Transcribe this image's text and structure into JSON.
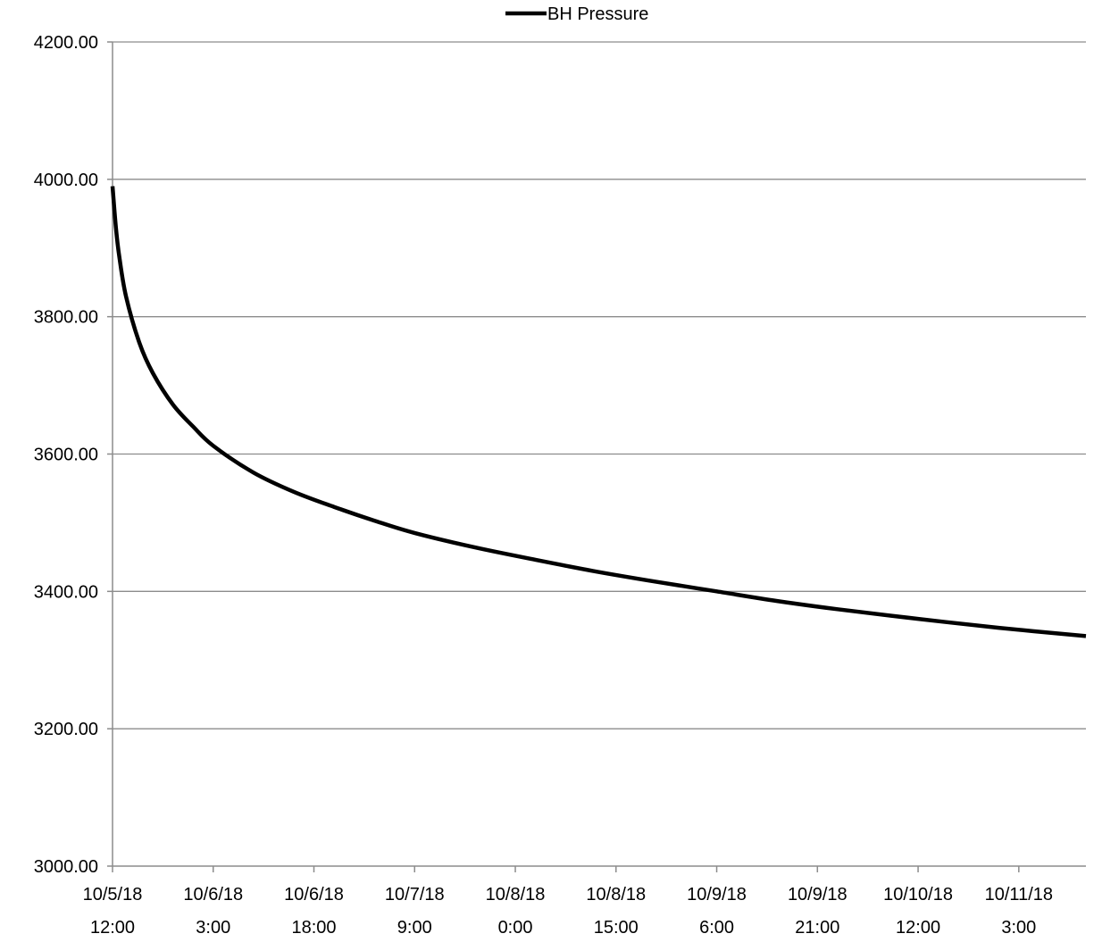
{
  "chart_data": {
    "type": "line",
    "title": "",
    "xlabel": "",
    "ylabel": "",
    "legend_position": "top-center",
    "grid": {
      "horizontal": true,
      "vertical": false
    },
    "ylim": [
      3000,
      4200
    ],
    "yticks": [
      "3000.00",
      "3200.00",
      "3400.00",
      "3600.00",
      "3800.00",
      "4000.00",
      "4200.00"
    ],
    "xlim": [
      "2018-10-05 12:00",
      "2018-10-11 13:00"
    ],
    "xticks": [
      {
        "value": "2018-10-05 12:00",
        "line1": "10/5/18",
        "line2": "12:00"
      },
      {
        "value": "2018-10-06 03:00",
        "line1": "10/6/18",
        "line2": "3:00"
      },
      {
        "value": "2018-10-06 18:00",
        "line1": "10/6/18",
        "line2": "18:00"
      },
      {
        "value": "2018-10-07 09:00",
        "line1": "10/7/18",
        "line2": "9:00"
      },
      {
        "value": "2018-10-08 00:00",
        "line1": "10/8/18",
        "line2": "0:00"
      },
      {
        "value": "2018-10-08 15:00",
        "line1": "10/8/18",
        "line2": "15:00"
      },
      {
        "value": "2018-10-09 06:00",
        "line1": "10/9/18",
        "line2": "6:00"
      },
      {
        "value": "2018-10-09 21:00",
        "line1": "10/9/18",
        "line2": "21:00"
      },
      {
        "value": "2018-10-10 12:00",
        "line1": "10/10/18",
        "line2": "12:00"
      },
      {
        "value": "2018-10-11 03:00",
        "line1": "10/11/18",
        "line2": "3:00"
      }
    ],
    "series": [
      {
        "name": "BH Pressure",
        "color": "#000000",
        "x": [
          "2018-10-05 12:00",
          "2018-10-05 12:30",
          "2018-10-05 13:00",
          "2018-10-05 14:00",
          "2018-10-05 16:00",
          "2018-10-05 18:00",
          "2018-10-05 21:00",
          "2018-10-06 00:00",
          "2018-10-06 03:00",
          "2018-10-06 09:00",
          "2018-10-06 15:00",
          "2018-10-06 21:00",
          "2018-10-07 03:00",
          "2018-10-07 09:00",
          "2018-10-07 18:00",
          "2018-10-08 03:00",
          "2018-10-08 12:00",
          "2018-10-08 21:00",
          "2018-10-09 06:00",
          "2018-10-09 15:00",
          "2018-10-10 00:00",
          "2018-10-10 12:00",
          "2018-10-11 00:00",
          "2018-10-11 13:00"
        ],
        "y": [
          3990,
          3930,
          3888,
          3830,
          3762,
          3718,
          3672,
          3640,
          3612,
          3573,
          3545,
          3523,
          3503,
          3485,
          3464,
          3446,
          3429,
          3414,
          3400,
          3386,
          3374,
          3360,
          3347,
          3335
        ]
      }
    ]
  }
}
